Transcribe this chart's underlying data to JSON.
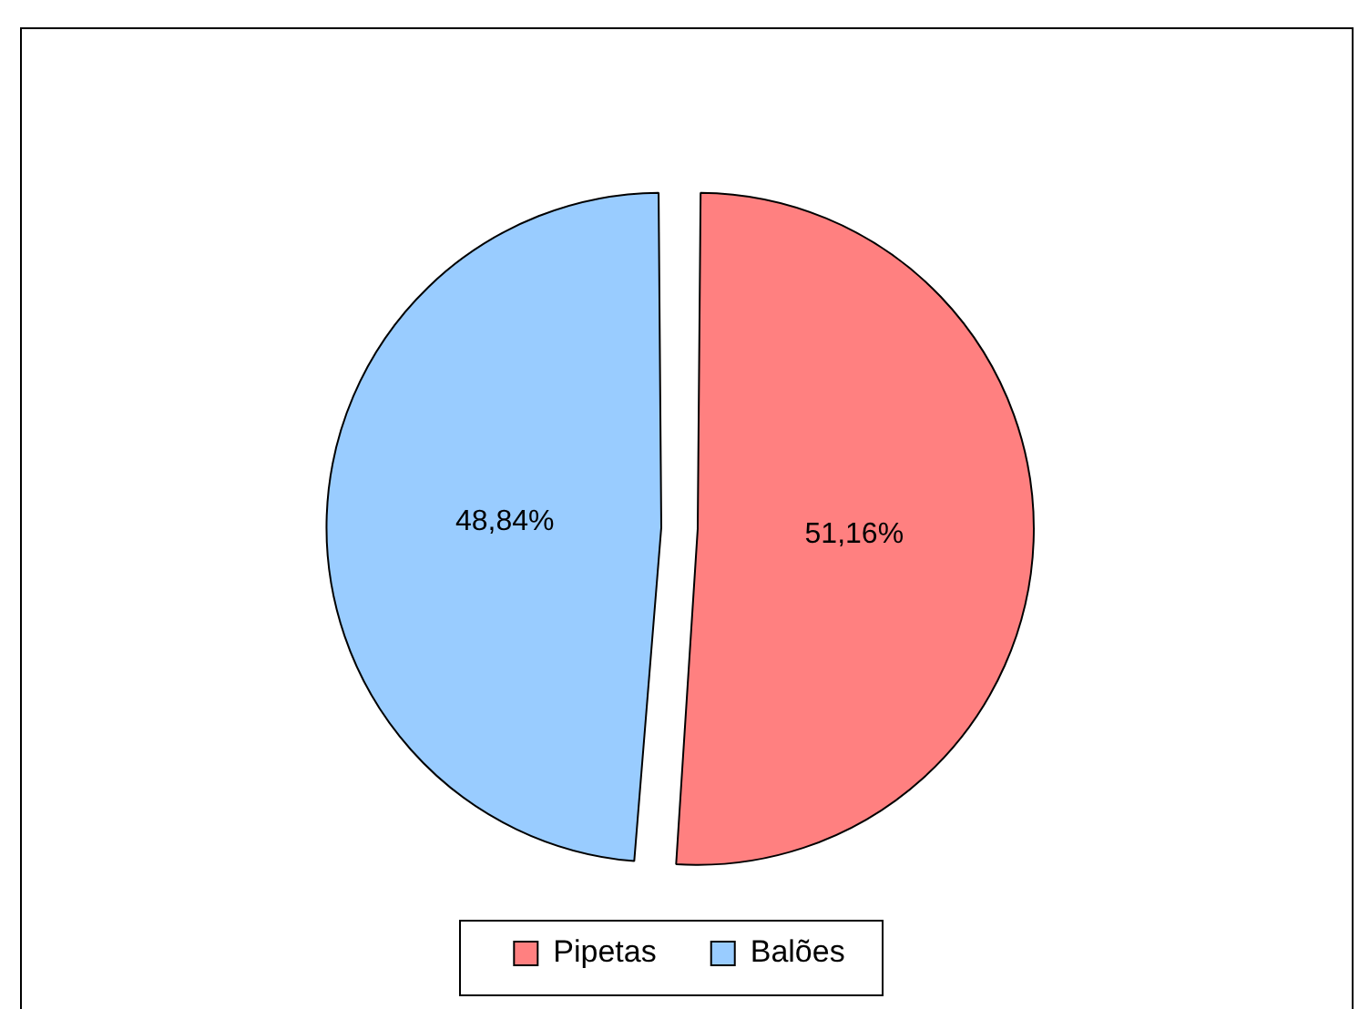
{
  "chart_data": {
    "type": "pie",
    "categories": [
      "Pipetas",
      "Balões"
    ],
    "values": [
      51.16,
      48.84
    ],
    "colors": [
      "#ff8080",
      "#99ccff"
    ],
    "value_labels": [
      "51,16%",
      "48,84%"
    ],
    "legend": "bottom"
  }
}
